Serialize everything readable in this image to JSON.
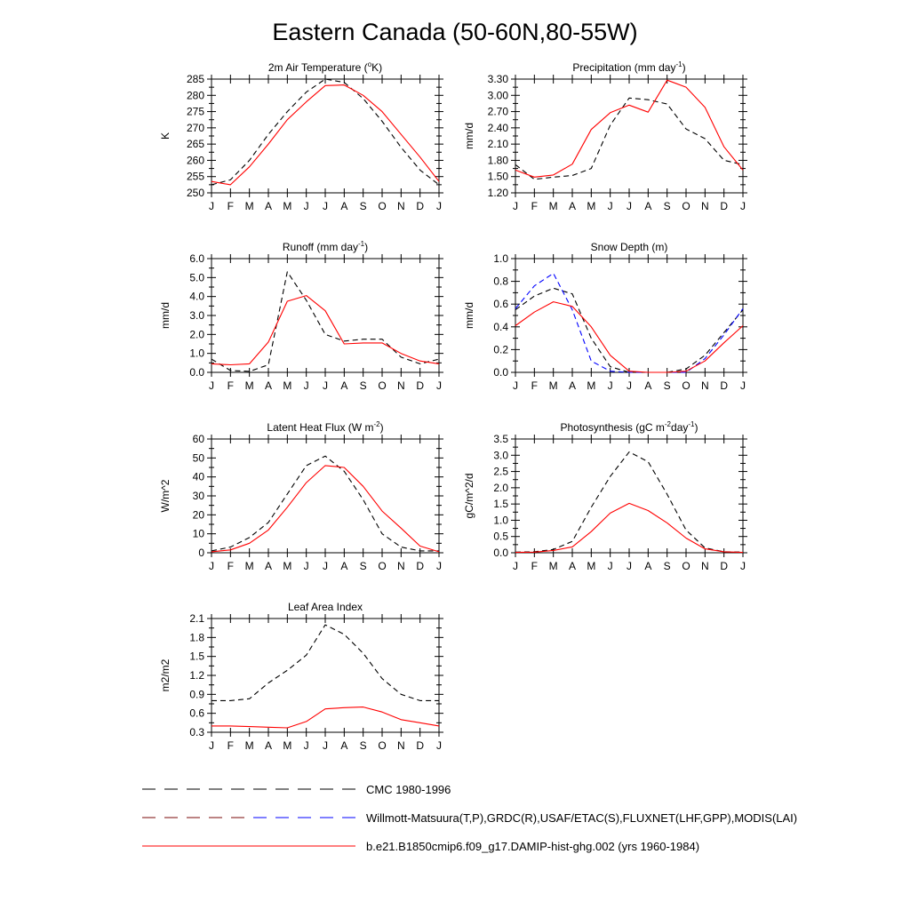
{
  "figure": {
    "title": "Eastern Canada (50-60N,80-55W)"
  },
  "legend": [
    {
      "label": "CMC 1980-1996",
      "style": "dashed",
      "colors": [
        "#000000"
      ]
    },
    {
      "label": "Willmott-Matsuura(T,P),GRDC(R),USAF/ETAC(S),FLUXNET(LHF,GPP),MODIS(LAI)",
      "style": "dashed",
      "colors": [
        "#7a0a0a",
        "#0000ff"
      ]
    },
    {
      "label": "b.e21.B1850cmip6.f09_g17.DAMIP-hist-ghg.002 (yrs 1960-1984)",
      "style": "solid",
      "colors": [
        "#ff0000"
      ]
    }
  ],
  "chart_data": [
    {
      "type": "line",
      "title": "2m Air Temperature (",
      "title_sup": "o",
      "title_post": "K)",
      "xlabel": "",
      "ylabel": "K",
      "categories": [
        "J",
        "F",
        "M",
        "A",
        "M",
        "J",
        "J",
        "A",
        "S",
        "O",
        "N",
        "D",
        "J"
      ],
      "ylim": [
        250,
        285
      ],
      "yticks": [
        250,
        255,
        260,
        265,
        270,
        275,
        280,
        285
      ],
      "ytick_labels": [
        "250",
        "255",
        "260",
        "265",
        "270",
        "275",
        "280",
        "285"
      ],
      "series": [
        {
          "style": "dashed",
          "color": "#000000",
          "values": [
            252.5,
            254,
            260,
            268,
            275,
            281,
            285,
            284,
            279,
            272,
            264,
            257,
            252.5
          ]
        },
        {
          "style": "solid",
          "color": "#ff0000",
          "values": [
            253.5,
            252.5,
            258,
            265,
            272.5,
            278,
            283,
            283.2,
            280,
            275,
            268,
            261,
            253.5
          ]
        }
      ]
    },
    {
      "type": "line",
      "title": "Precipitation (mm day",
      "title_sup": "-1",
      "title_post": ")",
      "xlabel": "",
      "ylabel": "mm/d",
      "categories": [
        "J",
        "F",
        "M",
        "A",
        "M",
        "J",
        "J",
        "A",
        "S",
        "O",
        "N",
        "D",
        "J"
      ],
      "ylim": [
        1.2,
        3.3
      ],
      "yticks": [
        1.2,
        1.5,
        1.8,
        2.1,
        2.4,
        2.7,
        3.0,
        3.3
      ],
      "ytick_labels": [
        "1.20",
        "1.50",
        "1.80",
        "2.10",
        "2.40",
        "2.70",
        "3.00",
        "3.30"
      ],
      "series": [
        {
          "style": "dashed",
          "color": "#000000",
          "values": [
            1.72,
            1.45,
            1.49,
            1.52,
            1.65,
            2.45,
            2.95,
            2.92,
            2.84,
            2.38,
            2.2,
            1.8,
            1.72
          ]
        },
        {
          "style": "solid",
          "color": "#ff0000",
          "values": [
            1.62,
            1.49,
            1.53,
            1.73,
            2.37,
            2.68,
            2.82,
            2.69,
            3.28,
            3.15,
            2.78,
            2.05,
            1.62
          ]
        }
      ]
    },
    {
      "type": "line",
      "title": "Runoff (mm day",
      "title_sup": "-1",
      "title_post": ")",
      "xlabel": "",
      "ylabel": "mm/d",
      "categories": [
        "J",
        "F",
        "M",
        "A",
        "M",
        "J",
        "J",
        "A",
        "S",
        "O",
        "N",
        "D",
        "J"
      ],
      "ylim": [
        0,
        6
      ],
      "yticks": [
        0,
        1,
        2,
        3,
        4,
        5,
        6
      ],
      "ytick_labels": [
        "0.0",
        "1.0",
        "2.0",
        "3.0",
        "4.0",
        "5.0",
        "6.0"
      ],
      "series": [
        {
          "style": "dashed",
          "color": "#000000",
          "values": [
            0.7,
            0.1,
            0.05,
            0.4,
            5.3,
            3.8,
            2.0,
            1.65,
            1.75,
            1.75,
            0.8,
            0.45,
            0.7
          ]
        },
        {
          "style": "solid",
          "color": "#ff0000",
          "values": [
            0.45,
            0.4,
            0.45,
            1.6,
            3.75,
            4.05,
            3.25,
            1.5,
            1.55,
            1.55,
            1.0,
            0.6,
            0.45
          ]
        }
      ]
    },
    {
      "type": "line",
      "title": "Snow Depth (m)",
      "title_sup": "",
      "title_post": "",
      "xlabel": "",
      "ylabel": "mm/d",
      "categories": [
        "J",
        "F",
        "M",
        "A",
        "M",
        "J",
        "J",
        "A",
        "S",
        "O",
        "N",
        "D",
        "J"
      ],
      "ylim": [
        0,
        1
      ],
      "yticks": [
        0,
        0.2,
        0.4,
        0.6,
        0.8,
        1.0
      ],
      "ytick_labels": [
        "0.0",
        "0.2",
        "0.4",
        "0.6",
        "0.8",
        "1.0"
      ],
      "series": [
        {
          "style": "dashed",
          "color": "#000000",
          "values": [
            0.55,
            0.67,
            0.74,
            0.69,
            0.3,
            0.05,
            0.0,
            0.0,
            0.0,
            0.03,
            0.15,
            0.35,
            0.55
          ]
        },
        {
          "style": "dashed",
          "color": "#0000ff",
          "values": [
            0.56,
            0.76,
            0.87,
            0.55,
            0.1,
            0.01,
            0.0,
            0.0,
            0.0,
            0.0,
            0.12,
            0.33,
            0.56
          ]
        },
        {
          "style": "solid",
          "color": "#ff0000",
          "values": [
            0.41,
            0.53,
            0.62,
            0.58,
            0.4,
            0.15,
            0.01,
            0.0,
            0.0,
            0.01,
            0.1,
            0.26,
            0.41
          ]
        }
      ]
    },
    {
      "type": "line",
      "title": "Latent Heat Flux (W m",
      "title_sup": "-2",
      "title_post": ")",
      "xlabel": "",
      "ylabel": "W/m^2",
      "categories": [
        "J",
        "F",
        "M",
        "A",
        "M",
        "J",
        "J",
        "A",
        "S",
        "O",
        "N",
        "D",
        "J"
      ],
      "ylim": [
        0,
        60
      ],
      "yticks": [
        0,
        10,
        20,
        30,
        40,
        50,
        60
      ],
      "ytick_labels": [
        "0",
        "10",
        "20",
        "30",
        "40",
        "50",
        "60"
      ],
      "series": [
        {
          "style": "dashed",
          "color": "#000000",
          "values": [
            1,
            3,
            8,
            16,
            31,
            46,
            51,
            43,
            28,
            10,
            3,
            1,
            1
          ]
        },
        {
          "style": "solid",
          "color": "#ff0000",
          "values": [
            0.5,
            1.5,
            5,
            12,
            24,
            37,
            46,
            45,
            35,
            22,
            13,
            3.5,
            0.5
          ]
        }
      ]
    },
    {
      "type": "line",
      "title": "Photosynthesis (gC m",
      "title_sup": "-2",
      "title_post": "day",
      "title_sup2": "-1",
      "title_post2": ")",
      "xlabel": "",
      "ylabel": "gC/m^2/d",
      "categories": [
        "J",
        "F",
        "M",
        "A",
        "M",
        "J",
        "J",
        "A",
        "S",
        "O",
        "N",
        "D",
        "J"
      ],
      "ylim": [
        0,
        3.5
      ],
      "yticks": [
        0,
        0.5,
        1.0,
        1.5,
        2.0,
        2.5,
        3.0,
        3.5
      ],
      "ytick_labels": [
        "0.0",
        "0.5",
        "1.0",
        "1.5",
        "2.0",
        "2.5",
        "3.0",
        "3.5"
      ],
      "series": [
        {
          "style": "dashed",
          "color": "#000000",
          "values": [
            0.02,
            0.03,
            0.1,
            0.35,
            1.4,
            2.35,
            3.1,
            2.8,
            1.8,
            0.7,
            0.15,
            0.03,
            0.02
          ]
        },
        {
          "style": "solid",
          "color": "#ff0000",
          "values": [
            0.01,
            0.02,
            0.07,
            0.18,
            0.65,
            1.22,
            1.52,
            1.3,
            0.92,
            0.45,
            0.12,
            0.03,
            0.01
          ]
        }
      ]
    },
    {
      "type": "line",
      "title": "Leaf Area Index",
      "title_sup": "",
      "title_post": "",
      "xlabel": "",
      "ylabel": "m2/m2",
      "categories": [
        "J",
        "F",
        "M",
        "A",
        "M",
        "J",
        "J",
        "A",
        "S",
        "O",
        "N",
        "D",
        "J"
      ],
      "ylim": [
        0.3,
        2.1
      ],
      "yticks": [
        0.3,
        0.6,
        0.9,
        1.2,
        1.5,
        1.8,
        2.1
      ],
      "ytick_labels": [
        "0.3",
        "0.6",
        "0.9",
        "1.2",
        "1.5",
        "1.8",
        "2.1"
      ],
      "series": [
        {
          "style": "dashed",
          "color": "#000000",
          "values": [
            0.8,
            0.8,
            0.83,
            1.08,
            1.28,
            1.52,
            2.0,
            1.85,
            1.55,
            1.15,
            0.9,
            0.8,
            0.8
          ]
        },
        {
          "style": "solid",
          "color": "#ff0000",
          "values": [
            0.4,
            0.4,
            0.39,
            0.38,
            0.37,
            0.47,
            0.67,
            0.69,
            0.7,
            0.62,
            0.5,
            0.45,
            0.4
          ]
        }
      ]
    }
  ]
}
